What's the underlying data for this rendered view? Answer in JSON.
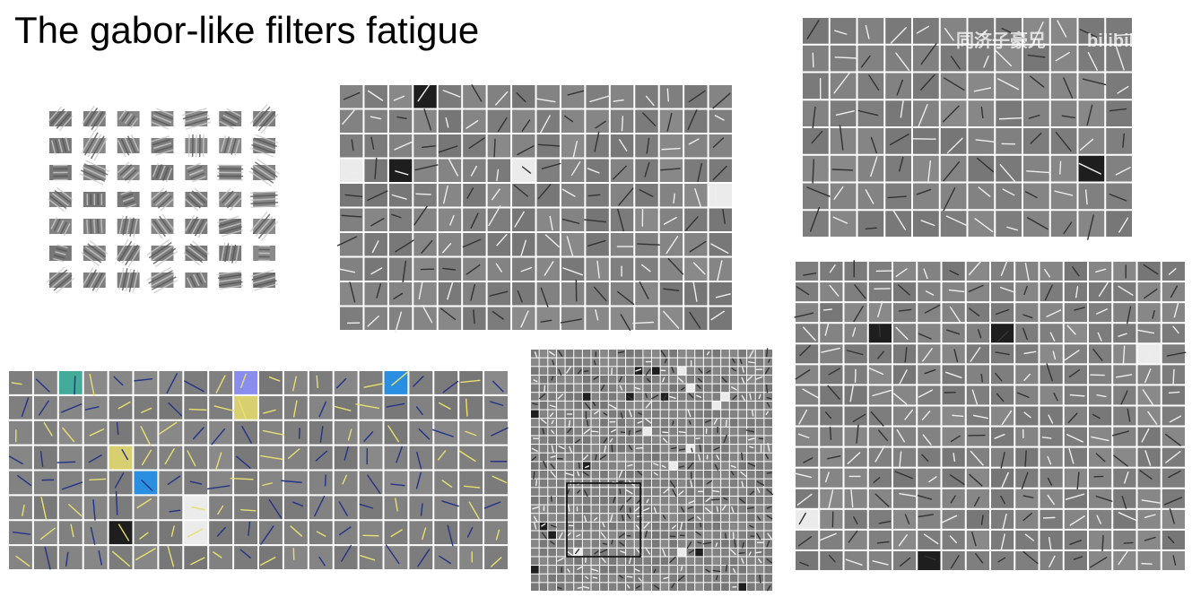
{
  "header": {
    "title": "The gabor-like filters fatigue"
  },
  "watermark": {
    "author": "同济子豪兄",
    "site": "bilibili"
  }
}
